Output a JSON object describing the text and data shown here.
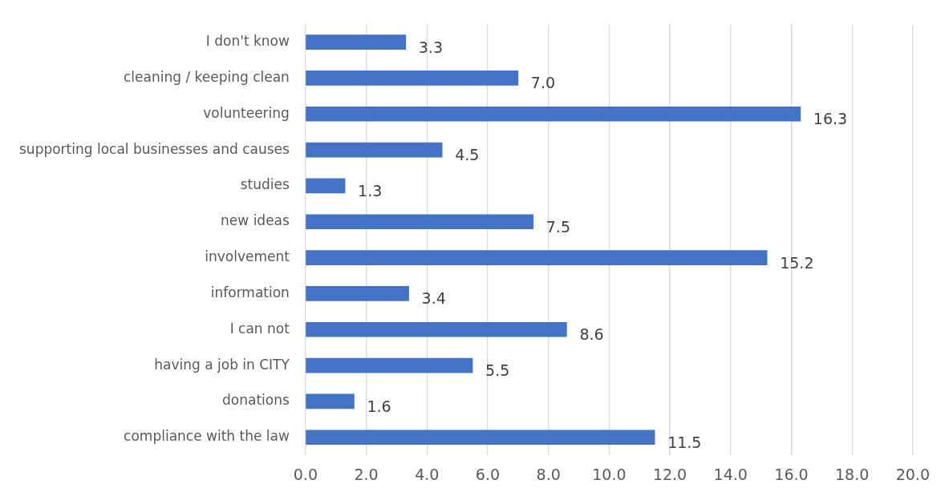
{
  "chart_data": {
    "type": "bar",
    "orientation": "horizontal",
    "categories": [
      "I don't know",
      "cleaning / keeping clean",
      "volunteering",
      "supporting local businesses and causes",
      "studies",
      "new ideas",
      "involvement",
      "information",
      "I can not",
      "having a job in CITY",
      "donations",
      "compliance with the law"
    ],
    "values": [
      3.3,
      7.0,
      16.3,
      4.5,
      1.3,
      7.5,
      15.2,
      3.4,
      8.6,
      5.5,
      1.6,
      11.5
    ],
    "value_labels": [
      "3.3",
      "7.0",
      "16.3",
      "4.5",
      "1.3",
      "7.5",
      "15.2",
      "3.4",
      "8.6",
      "5.5",
      "1.6",
      "11.5"
    ],
    "color": "#4472c4",
    "xlim": [
      0,
      20
    ],
    "xticks": [
      {
        "value": 0,
        "label": "0.0"
      },
      {
        "value": 2,
        "label": "2.0"
      },
      {
        "value": 4,
        "label": "4.0"
      },
      {
        "value": 6,
        "label": "6.0"
      },
      {
        "value": 8,
        "label": "8.0"
      },
      {
        "value": 10,
        "label": "10.0"
      },
      {
        "value": 12,
        "label": "12.0"
      },
      {
        "value": 14,
        "label": "14.0"
      },
      {
        "value": 16,
        "label": "16.0"
      },
      {
        "value": 18,
        "label": "18.0"
      },
      {
        "value": 20,
        "label": "20.0"
      }
    ],
    "grid": "x"
  }
}
